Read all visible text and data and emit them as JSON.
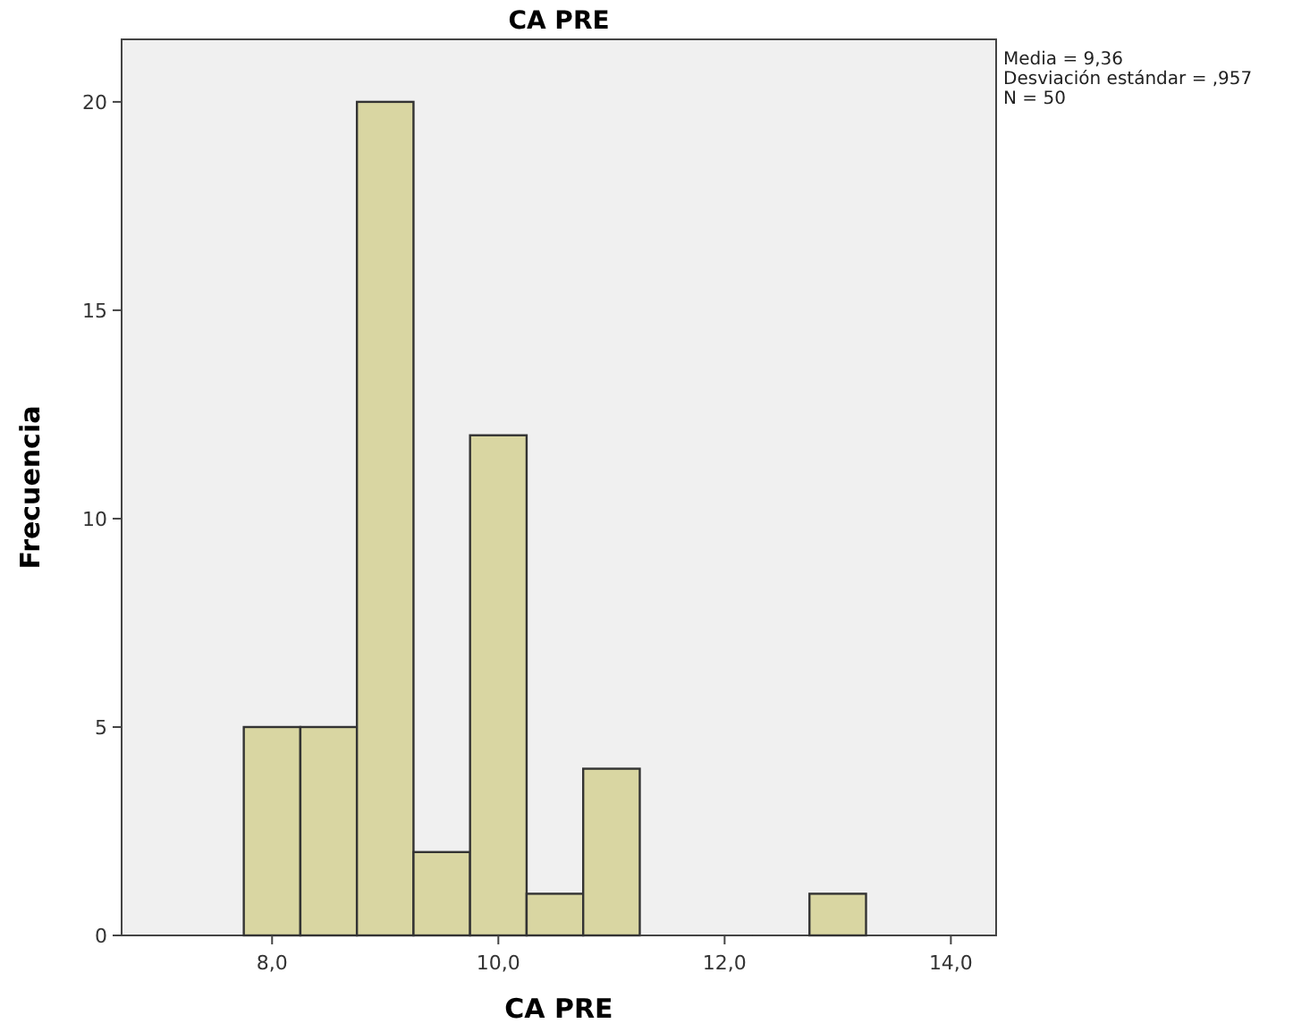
{
  "chart_data": {
    "type": "histogram",
    "title": "CA PRE",
    "xlabel": "CA PRE",
    "ylabel": "Frecuencia",
    "bins": [
      7.75,
      8.25,
      8.75,
      9.25,
      9.75,
      10.25,
      10.75,
      11.25,
      11.75,
      12.25,
      12.75,
      13.25
    ],
    "values": [
      5,
      5,
      20,
      2,
      12,
      1,
      4,
      0,
      0,
      0,
      1
    ],
    "color": "#d9d6a2",
    "xlim": [
      6.67,
      14.4
    ],
    "xticks": [
      {
        "value": 8,
        "label": "8,0"
      },
      {
        "value": 10,
        "label": "10,0"
      },
      {
        "value": 12,
        "label": "12,0"
      },
      {
        "value": 14,
        "label": "14,0"
      }
    ],
    "ylim": [
      0,
      21.5
    ],
    "yticks": [
      0,
      5,
      10,
      15,
      20
    ],
    "annotations": [
      "Media = 9,36",
      "Desviación estándar = ,957",
      "N = 50"
    ]
  }
}
